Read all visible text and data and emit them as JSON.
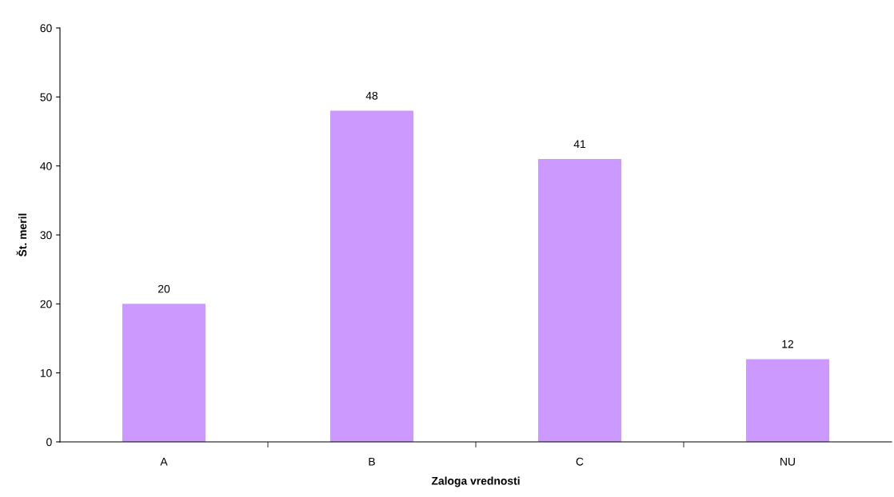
{
  "chart_data": {
    "type": "bar",
    "xlabel": "Zaloga vrednosti",
    "ylabel": "Št. meril",
    "categories": [
      "A",
      "B",
      "C",
      "NU"
    ],
    "values": [
      20,
      48,
      41,
      12
    ],
    "color": "#cc99ff",
    "ylim": [
      0,
      60
    ],
    "yticks": [
      0,
      10,
      20,
      30,
      40,
      50,
      60
    ],
    "grid": false,
    "data_labels": true
  }
}
